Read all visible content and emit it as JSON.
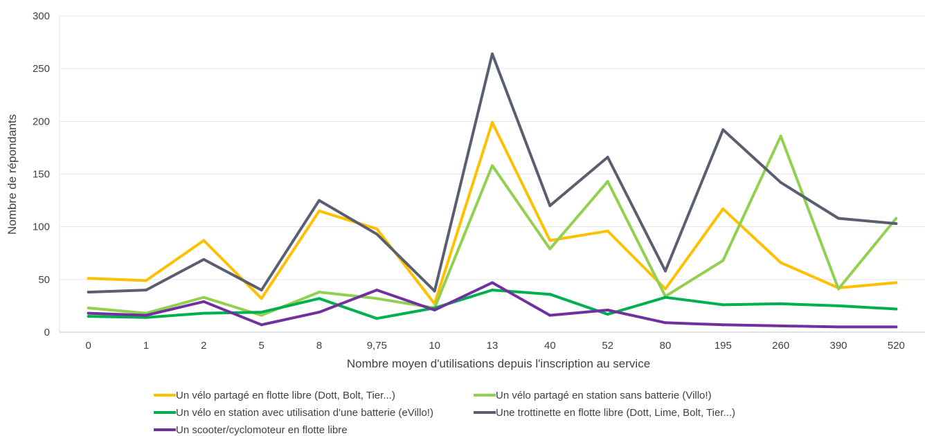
{
  "chart_data": {
    "type": "line",
    "title": "",
    "xlabel": "Nombre moyen d'utilisations depuis l'inscription au service",
    "ylabel": "Nombre de répondants",
    "ylim": [
      0,
      300
    ],
    "yticks": [
      0,
      50,
      100,
      150,
      200,
      250,
      300
    ],
    "grid": true,
    "legend_position": "bottom",
    "categories": [
      "0",
      "1",
      "2",
      "5",
      "8",
      "9,75",
      "10",
      "13",
      "40",
      "52",
      "80",
      "195",
      "260",
      "390",
      "520"
    ],
    "series": [
      {
        "name": "Un vélo partagé en flotte libre (Dott, Bolt, Tier...)",
        "color": "#FFC000",
        "values": [
          51,
          49,
          87,
          32,
          115,
          98,
          27,
          199,
          87,
          96,
          41,
          117,
          66,
          42,
          47
        ]
      },
      {
        "name": "Un vélo partagé en station sans batterie (Villo!)",
        "color": "#92D050",
        "values": [
          23,
          18,
          33,
          16,
          38,
          32,
          23,
          158,
          79,
          143,
          34,
          68,
          186,
          41,
          108
        ]
      },
      {
        "name": "Un vélo en station avec utilisation d'une batterie (eVillo!)",
        "color": "#00B050",
        "values": [
          15,
          14,
          18,
          19,
          32,
          13,
          23,
          40,
          36,
          17,
          33,
          26,
          27,
          25,
          22
        ]
      },
      {
        "name": "Une trottinette en flotte libre (Dott, Lime, Bolt, Tier...)",
        "color": "#595F6E",
        "values": [
          38,
          40,
          69,
          40,
          125,
          93,
          39,
          264,
          120,
          166,
          58,
          192,
          142,
          108,
          103
        ]
      },
      {
        "name": "Un scooter/cyclomoteur en flotte libre",
        "color": "#7030A0",
        "values": [
          18,
          16,
          29,
          7,
          19,
          40,
          21,
          47,
          16,
          21,
          9,
          7,
          6,
          5,
          5
        ]
      }
    ]
  }
}
